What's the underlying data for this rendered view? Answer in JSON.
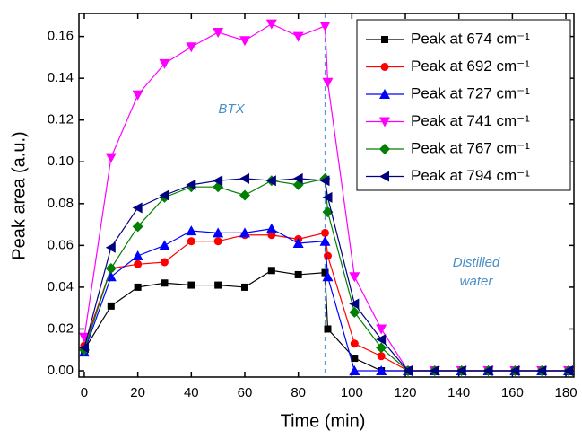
{
  "chart_data": {
    "type": "line",
    "x_label": "Time (min)",
    "y_label": "Peak area (a.u.)",
    "x": [
      0,
      10,
      20,
      30,
      40,
      50,
      60,
      70,
      80,
      90,
      91,
      101,
      111,
      121,
      131,
      141,
      151,
      161,
      171,
      181
    ],
    "series": [
      {
        "name": "Peak at 674 cm⁻¹",
        "color": "#000000",
        "marker": "square",
        "values": [
          0.01,
          0.031,
          0.04,
          0.042,
          0.041,
          0.041,
          0.04,
          0.048,
          0.046,
          0.047,
          0.02,
          0.006,
          0.0,
          0,
          0,
          0,
          0,
          0,
          0,
          0
        ]
      },
      {
        "name": "Peak at 692 cm⁻¹",
        "color": "#ff0000",
        "marker": "circle",
        "values": [
          0.012,
          0.049,
          0.051,
          0.052,
          0.062,
          0.062,
          0.065,
          0.065,
          0.063,
          0.066,
          0.055,
          0.013,
          0.007,
          0,
          0,
          0,
          0,
          0,
          0,
          0
        ]
      },
      {
        "name": "Peak at 727 cm⁻¹",
        "color": "#0000ff",
        "marker": "triangle-up",
        "values": [
          0.009,
          0.045,
          0.055,
          0.06,
          0.067,
          0.066,
          0.066,
          0.068,
          0.061,
          0.062,
          0.045,
          0.0,
          0.0,
          0,
          0,
          0,
          0,
          0,
          0,
          0
        ]
      },
      {
        "name": "Peak at 741 cm⁻¹",
        "color": "#ff00ff",
        "marker": "triangle-down",
        "values": [
          0.016,
          0.102,
          0.132,
          0.147,
          0.155,
          0.162,
          0.158,
          0.166,
          0.16,
          0.165,
          0.138,
          0.045,
          0.02,
          0,
          0,
          0,
          0,
          0,
          0,
          0
        ]
      },
      {
        "name": "Peak at 767 cm⁻¹",
        "color": "#008000",
        "marker": "diamond",
        "values": [
          0.01,
          0.049,
          0.069,
          0.083,
          0.088,
          0.088,
          0.084,
          0.091,
          0.089,
          0.092,
          0.076,
          0.028,
          0.011,
          0,
          0,
          0,
          0,
          0,
          0,
          0
        ]
      },
      {
        "name": "Peak at 794 cm⁻¹",
        "color": "#000080",
        "marker": "triangle-left",
        "values": [
          0.011,
          0.059,
          0.078,
          0.084,
          0.089,
          0.091,
          0.092,
          0.091,
          0.092,
          0.091,
          0.083,
          0.032,
          0.015,
          0,
          0,
          0,
          0,
          0,
          0,
          0
        ]
      }
    ],
    "xlim": [
      -2,
      183
    ],
    "ylim": [
      -0.003,
      0.171
    ],
    "xticks": [
      0,
      20,
      40,
      60,
      80,
      100,
      120,
      140,
      160,
      180
    ],
    "yticks": [
      {
        "value": 0,
        "label": "0.00"
      },
      {
        "value": 0.02,
        "label": "0.02"
      },
      {
        "value": 0.04,
        "label": "0.04"
      },
      {
        "value": 0.06,
        "label": "0.06"
      },
      {
        "value": 0.08,
        "label": "0.08"
      },
      {
        "value": 0.1,
        "label": "0.10"
      },
      {
        "value": 0.12,
        "label": "0.12"
      },
      {
        "value": 0.14,
        "label": "0.14"
      },
      {
        "value": 0.16,
        "label": "0.16"
      }
    ],
    "divider_x": 90,
    "annotations": [
      [
        "BTX"
      ],
      [
        "Distilled",
        "water"
      ]
    ],
    "legend": "top-right"
  }
}
